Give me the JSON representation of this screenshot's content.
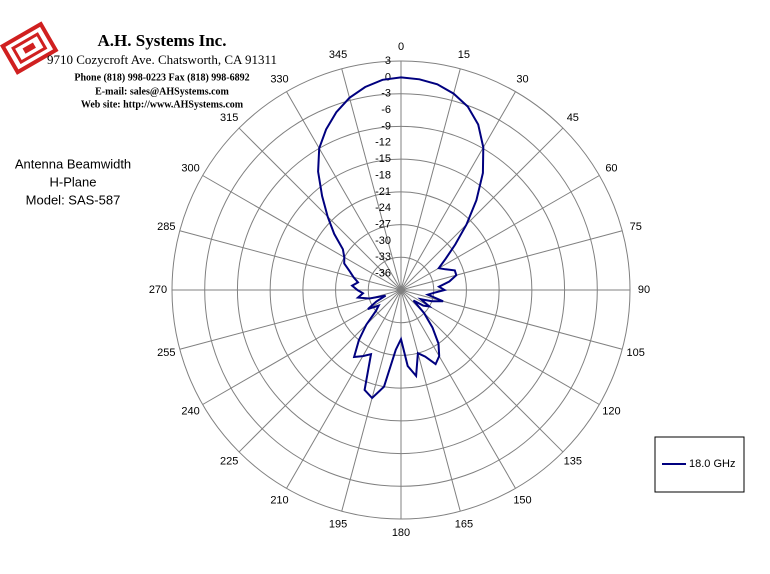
{
  "header": {
    "company": "A.H. Systems Inc.",
    "address": "9710 Cozycroft Ave. Chatsworth, CA 91311",
    "phone": "Phone (818) 998-0223 Fax (818) 998-6892",
    "email": "E-mail: sales@AHSystems.com",
    "web": "Web site: http://www.AHSystems.com"
  },
  "chart_data": {
    "type": "polar",
    "title": [
      "Antenna Beamwidth",
      "H-Plane",
      "Model: SAS-587"
    ],
    "x": [
      0,
      5,
      10,
      15,
      20,
      25,
      30,
      35,
      40,
      45,
      50,
      55,
      60,
      65,
      70,
      75,
      80,
      85,
      90,
      95,
      100,
      105,
      110,
      115,
      120,
      125,
      130,
      135,
      140,
      145,
      150,
      155,
      160,
      165,
      170,
      175,
      180,
      185,
      190,
      195,
      200,
      205,
      210,
      215,
      220,
      225,
      230,
      235,
      240,
      245,
      250,
      255,
      260,
      265,
      270,
      275,
      280,
      285,
      290,
      295,
      300,
      305,
      310,
      315,
      320,
      325,
      330,
      335,
      340,
      345,
      350,
      355
    ],
    "series": [
      {
        "name": "18.0 GHz",
        "color": "#00007f",
        "values": [
          0,
          -0.2,
          -0.7,
          -1.7,
          -3.2,
          -5.5,
          -8.8,
          -12.8,
          -17.5,
          -22,
          -26,
          -29,
          -31,
          -30,
          -28.5,
          -28.5,
          -30,
          -32,
          -31,
          -33,
          -34,
          -31,
          -33,
          -35,
          -33,
          -34,
          -36,
          -33,
          -30,
          -27,
          -25,
          -24,
          -26,
          -27,
          -23,
          -25,
          -30,
          -28,
          -21,
          -18.5,
          -19.5,
          -26,
          -25,
          -24,
          -27,
          -30,
          -33,
          -34,
          -32,
          -34,
          -36,
          -33,
          -31,
          -32,
          -31,
          -30,
          -31,
          -30,
          -29,
          -27.5,
          -27,
          -26,
          -23,
          -20,
          -16.5,
          -12.5,
          -9,
          -6.5,
          -4.3,
          -2.5,
          -1.2,
          -0.3
        ]
      }
    ],
    "xticks": [
      0,
      15,
      30,
      45,
      60,
      75,
      90,
      105,
      120,
      135,
      150,
      165,
      180,
      195,
      210,
      225,
      240,
      255,
      270,
      285,
      300,
      315,
      330,
      345
    ],
    "rlim": [
      -39,
      3
    ],
    "rticks": [
      3,
      0,
      -3,
      -6,
      -9,
      -12,
      -15,
      -18,
      -21,
      -24,
      -27,
      -30,
      -33,
      -36
    ],
    "rgrid": [
      3,
      -3,
      -9,
      -15,
      -21,
      -27,
      -33
    ],
    "legend": "lower right"
  }
}
